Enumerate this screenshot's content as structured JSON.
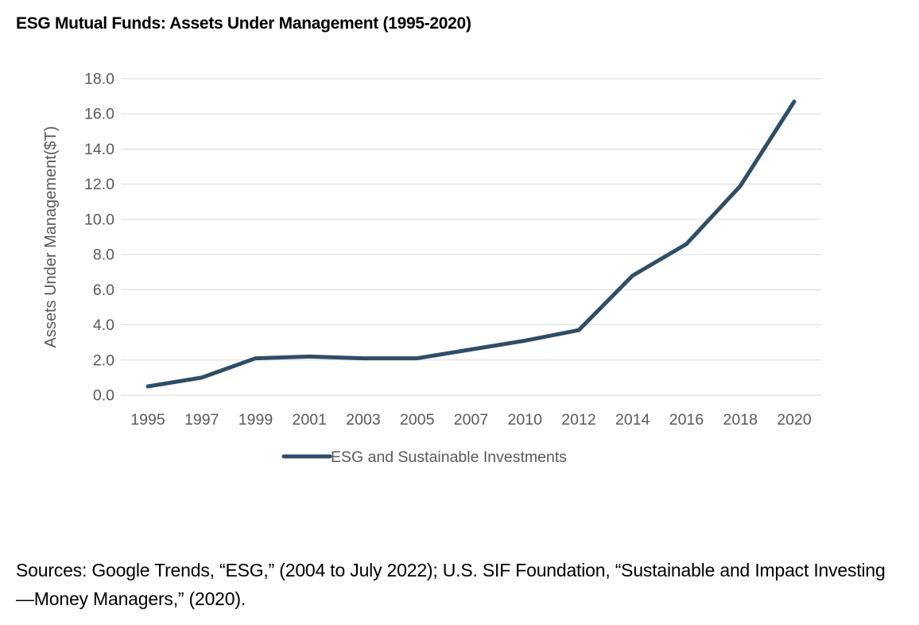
{
  "page": {
    "title": "ESG Mutual Funds: Assets Under Management (1995-2020)",
    "source_note": "Sources: Google Trends, “ESG,” (2004 to July 2022); U.S. SIF Foundation, “Sustainable and Impact Investing—Money Managers,” (2020)."
  },
  "chart_data": {
    "type": "line",
    "title": "ESG Mutual Funds: Assets Under Management (1995-2020)",
    "categories": [
      "1995",
      "1997",
      "1999",
      "2001",
      "2003",
      "2005",
      "2007",
      "2010",
      "2012",
      "2014",
      "2016",
      "2018",
      "2020"
    ],
    "series": [
      {
        "name": "ESG and Sustainable Investments",
        "values": [
          0.5,
          1.0,
          2.1,
          2.2,
          2.1,
          2.1,
          2.6,
          3.1,
          3.7,
          6.8,
          8.6,
          11.9,
          16.7
        ]
      }
    ],
    "xlabel": "",
    "ylabel": "Assets Under Management($T)",
    "ylim": [
      0,
      18
    ],
    "ytick_step": 2,
    "ytick_decimals": 1,
    "grid": "horizontal",
    "legend_position": "bottom",
    "colors": {
      "line": "#2F4D66",
      "gridline": "#D9D9D9",
      "tick_text": "#595959",
      "axis_title_text": "#595959",
      "legend_text": "#595959"
    }
  }
}
